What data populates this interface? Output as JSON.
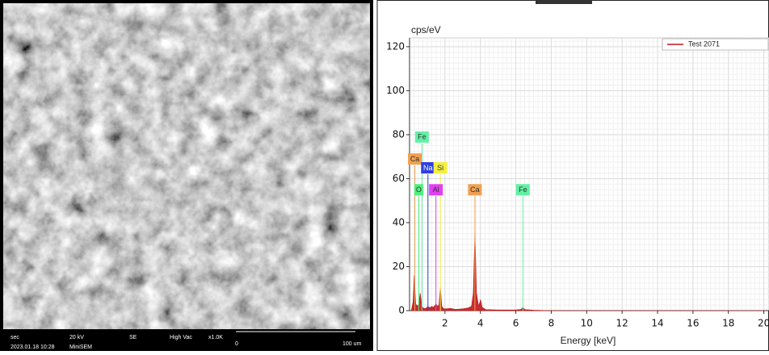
{
  "sem_panel": {
    "info_bar": {
      "mode": "sec",
      "date": "2023.01.18 10:28",
      "voltage": "20 kV",
      "device": "MiniSEM",
      "detector": "SE",
      "vacuum": "High Vac",
      "magnification": "x1.0K",
      "scale_start": "0",
      "scale_end": "100 um"
    }
  },
  "chart_data": {
    "type": "area",
    "y_label": "cps/eV",
    "x_label": "Energy [keV]",
    "xlim": [
      0,
      20.4
    ],
    "ylim": [
      0,
      124
    ],
    "xticks": [
      2,
      4,
      6,
      8,
      10,
      12,
      14,
      16,
      18,
      20
    ],
    "yticks": [
      0,
      20,
      40,
      60,
      80,
      100,
      120
    ],
    "grid": true,
    "legend": "top-right",
    "series": [
      {
        "name": "Test 2071",
        "color": "#c0161a",
        "x": [
          0.1,
          0.2,
          0.27,
          0.35,
          0.45,
          0.52,
          0.6,
          0.7,
          0.8,
          0.9,
          1.0,
          1.04,
          1.1,
          1.2,
          1.25,
          1.32,
          1.4,
          1.49,
          1.58,
          1.66,
          1.74,
          1.82,
          1.9,
          2.0,
          2.3,
          2.6,
          3.0,
          3.3,
          3.5,
          3.6,
          3.69,
          3.78,
          3.9,
          4.01,
          4.1,
          4.3,
          5.0,
          6.0,
          6.3,
          6.4,
          6.5,
          7.0,
          8,
          10,
          12,
          14,
          16,
          18,
          20
        ],
        "values": [
          0,
          4,
          16,
          3,
          2,
          3,
          8,
          2,
          1,
          1,
          1.5,
          2,
          1.5,
          1.5,
          2,
          1.5,
          2,
          3,
          2,
          2.5,
          11,
          2,
          1,
          0.8,
          1,
          0.6,
          0.8,
          1.2,
          2,
          8,
          36,
          8,
          2,
          5,
          1.5,
          0.5,
          0.3,
          0.3,
          0.6,
          1.5,
          0.5,
          0.2,
          0,
          0,
          0,
          0,
          0,
          0,
          0
        ]
      }
    ],
    "markers": [
      {
        "label": "Fe",
        "energy": 0.7,
        "height": 76,
        "color": "#62f0a4"
      },
      {
        "label": "Ca",
        "energy": 0.3,
        "height": 66,
        "color": "#f0a050"
      },
      {
        "label": "Na",
        "energy": 1.04,
        "height": 62,
        "color": "#2e3ee0"
      },
      {
        "label": "Si",
        "energy": 1.74,
        "height": 62,
        "color": "#f2f040"
      },
      {
        "label": "O",
        "energy": 0.52,
        "height": 52,
        "color": "#4ef07a"
      },
      {
        "label": "Al",
        "energy": 1.49,
        "height": 52,
        "color": "#e040f0"
      },
      {
        "label": "Ca",
        "energy": 3.69,
        "height": 52,
        "color": "#f0a050"
      },
      {
        "label": "Fe",
        "energy": 6.4,
        "height": 52,
        "color": "#62f0a4"
      }
    ]
  }
}
